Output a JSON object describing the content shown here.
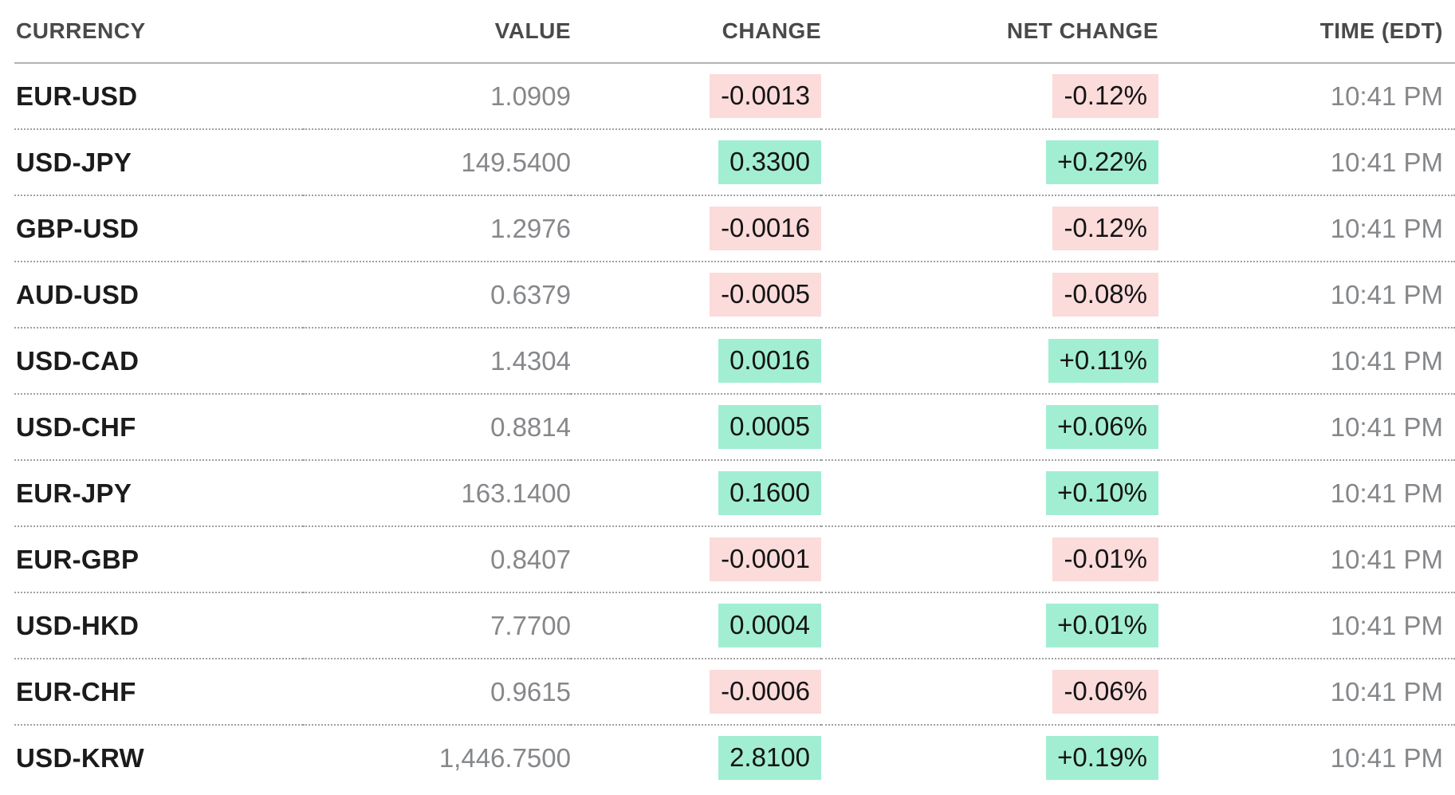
{
  "table": {
    "columns": [
      {
        "key": "currency",
        "label": "CURRENCY",
        "align": "left"
      },
      {
        "key": "value",
        "label": "VALUE",
        "align": "right"
      },
      {
        "key": "change",
        "label": "CHANGE",
        "align": "right"
      },
      {
        "key": "net_change",
        "label": "NET CHANGE",
        "align": "right"
      },
      {
        "key": "time",
        "label": "TIME (EDT)",
        "align": "right"
      }
    ],
    "rows": [
      {
        "currency": "EUR-USD",
        "value": "1.0909",
        "change": "-0.0013",
        "net_change": "-0.12%",
        "time": "10:41 PM",
        "direction": "down"
      },
      {
        "currency": "USD-JPY",
        "value": "149.5400",
        "change": "0.3300",
        "net_change": "+0.22%",
        "time": "10:41 PM",
        "direction": "up"
      },
      {
        "currency": "GBP-USD",
        "value": "1.2976",
        "change": "-0.0016",
        "net_change": "-0.12%",
        "time": "10:41 PM",
        "direction": "down"
      },
      {
        "currency": "AUD-USD",
        "value": "0.6379",
        "change": "-0.0005",
        "net_change": "-0.08%",
        "time": "10:41 PM",
        "direction": "down"
      },
      {
        "currency": "USD-CAD",
        "value": "1.4304",
        "change": "0.0016",
        "net_change": "+0.11%",
        "time": "10:41 PM",
        "direction": "up"
      },
      {
        "currency": "USD-CHF",
        "value": "0.8814",
        "change": "0.0005",
        "net_change": "+0.06%",
        "time": "10:41 PM",
        "direction": "up"
      },
      {
        "currency": "EUR-JPY",
        "value": "163.1400",
        "change": "0.1600",
        "net_change": "+0.10%",
        "time": "10:41 PM",
        "direction": "up"
      },
      {
        "currency": "EUR-GBP",
        "value": "0.8407",
        "change": "-0.0001",
        "net_change": "-0.01%",
        "time": "10:41 PM",
        "direction": "down"
      },
      {
        "currency": "USD-HKD",
        "value": "7.7700",
        "change": "0.0004",
        "net_change": "+0.01%",
        "time": "10:41 PM",
        "direction": "up"
      },
      {
        "currency": "EUR-CHF",
        "value": "0.9615",
        "change": "-0.0006",
        "net_change": "-0.06%",
        "time": "10:41 PM",
        "direction": "down"
      },
      {
        "currency": "USD-KRW",
        "value": "1,446.7500",
        "change": "2.8100",
        "net_change": "+0.19%",
        "time": "10:41 PM",
        "direction": "up"
      }
    ]
  },
  "colors": {
    "positive_badge_bg": "#a2eed3",
    "negative_badge_bg": "#fcdbdb",
    "header_text": "#4a4a4a",
    "pair_text": "#1b1b1b",
    "muted_text": "#85878a",
    "badge_text": "#141414",
    "header_rule": "#b3b3b3",
    "row_divider": "#a0a0a0",
    "background": "#ffffff"
  }
}
